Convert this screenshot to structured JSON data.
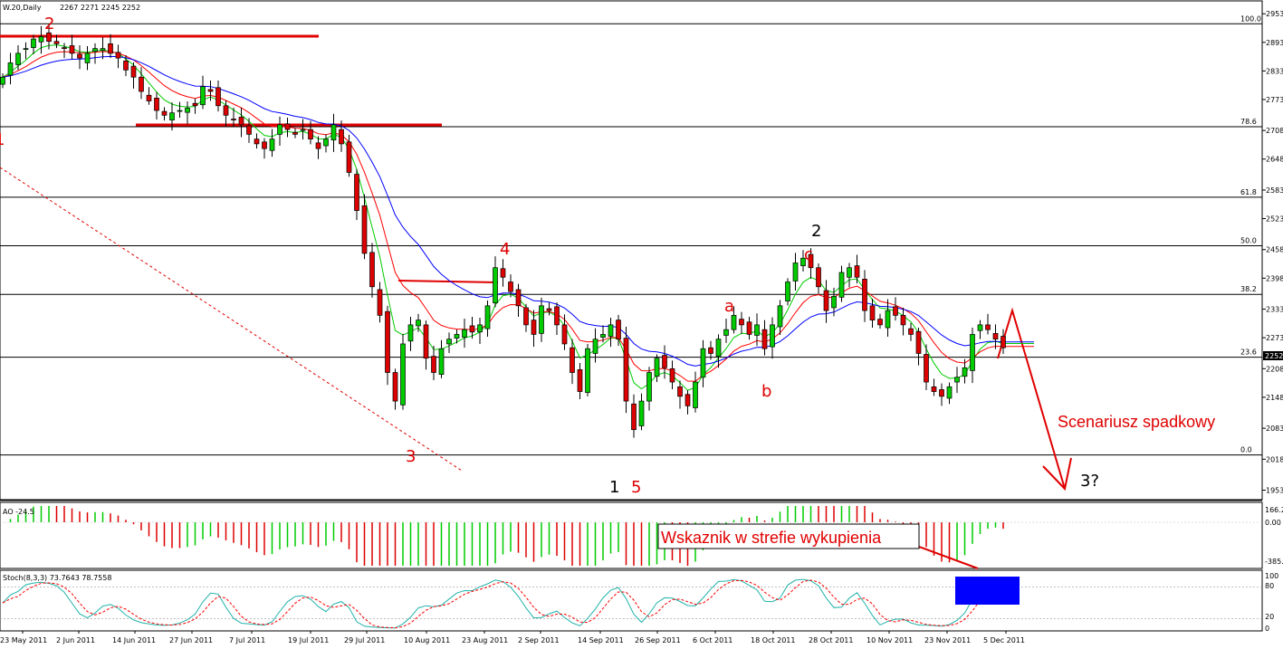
{
  "header": {
    "symbol": "W.20,Daily",
    "ohlc": "2267 2271 2245 2252"
  },
  "chart_data": [
    {
      "type": "candlestick",
      "title": "W.20,Daily",
      "ohlc_last": {
        "open": 2267,
        "high": 2271,
        "low": 2245,
        "close": 2252
      },
      "ylim": [
        1935,
        2980
      ],
      "y_ticks": [
        "2953",
        "2893",
        "2833",
        "2773",
        "2708",
        "2648",
        "2583",
        "2523",
        "2458",
        "2398",
        "2333",
        "2273",
        "2208",
        "2148",
        "2083",
        "2018",
        "1953"
      ],
      "current_price_label": "2252",
      "x_ticks": [
        "23 May 2011",
        "2 Jun 2011",
        "14 Jun 2011",
        "27 Jun 2011",
        "7 Jul 2011",
        "19 Jul 2011",
        "29 Jul 2011",
        "10 Aug 2011",
        "23 Aug 2011",
        "2 Sep 2011",
        "14 Sep 2011",
        "26 Sep 2011",
        "6 Oct 2011",
        "18 Oct 2011",
        "28 Oct 2011",
        "10 Nov 2011",
        "23 Nov 2011",
        "5 Dec 2011"
      ],
      "fib_levels": [
        {
          "label": "100.0",
          "value": 2932
        },
        {
          "label": "78.6",
          "value": 2716
        },
        {
          "label": "61.8",
          "value": 2568
        },
        {
          "label": "50.0",
          "value": 2466
        },
        {
          "label": "38.2",
          "value": 2364
        },
        {
          "label": "23.6",
          "value": 2232
        },
        {
          "label": "0.0",
          "value": 2027
        }
      ],
      "close_series": [
        2820,
        2850,
        2870,
        2880,
        2900,
        2905,
        2895,
        2890,
        2880,
        2870,
        2860,
        2870,
        2880,
        2880,
        2870,
        2860,
        2835,
        2820,
        2790,
        2770,
        2750,
        2740,
        2745,
        2750,
        2755,
        2760,
        2800,
        2790,
        2760,
        2740,
        2730,
        2720,
        2700,
        2680,
        2670,
        2690,
        2720,
        2710,
        2700,
        2710,
        2690,
        2670,
        2690,
        2720,
        2680,
        2620,
        2540,
        2450,
        2380,
        2320,
        2200,
        2140,
        2260,
        2300,
        2310,
        2230,
        2200,
        2250,
        2270,
        2280,
        2290,
        2285,
        2300,
        2340,
        2420,
        2400,
        2370,
        2340,
        2300,
        2280,
        2340,
        2330,
        2300,
        2260,
        2200,
        2160,
        2250,
        2270,
        2280,
        2300,
        2270,
        2140,
        2080,
        2140,
        2200,
        2230,
        2210,
        2180,
        2150,
        2130,
        2180,
        2250,
        2240,
        2270,
        2290,
        2320,
        2300,
        2280,
        2300,
        2250,
        2300,
        2340,
        2390,
        2430,
        2440,
        2420,
        2380,
        2330,
        2360,
        2410,
        2420,
        2400,
        2330,
        2310,
        2300,
        2330,
        2320,
        2300,
        2280,
        2240,
        2180,
        2160,
        2150,
        2170,
        2190,
        2210,
        2280,
        2300,
        2290,
        2270,
        2252
      ],
      "wave_labels": [
        "2",
        "1",
        "4",
        "3",
        "a",
        "b",
        "c",
        "2",
        "1",
        "5",
        "3?"
      ],
      "annotation": "Scenariusz spadkowy"
    },
    {
      "type": "bar",
      "title": "AO -24.5",
      "y_ticks": [
        "166.2",
        "0.00",
        "-385."
      ],
      "annotation": "Wskaznik w strefie wykupienia"
    },
    {
      "type": "line",
      "title": "Stoch(8,3,3) 73.7643 78.7558",
      "y_ticks": [
        "100",
        "80",
        "20",
        "0"
      ],
      "series": [
        {
          "name": "Stoch(8,3,3) main",
          "last": 73.7643
        },
        {
          "name": "Stoch(8,3,3) signal",
          "last": 78.7558
        }
      ]
    }
  ],
  "colors": {
    "bull": "#00cc00",
    "bear": "#dd0000",
    "ma_fast": "#00cc00",
    "ma_mid": "#ff0000",
    "ma_slow": "#0000ff",
    "annot": "#e00000",
    "highlight": "#0000ff",
    "stoch_main": "#20b2aa",
    "stoch_signal": "#ff0000"
  }
}
